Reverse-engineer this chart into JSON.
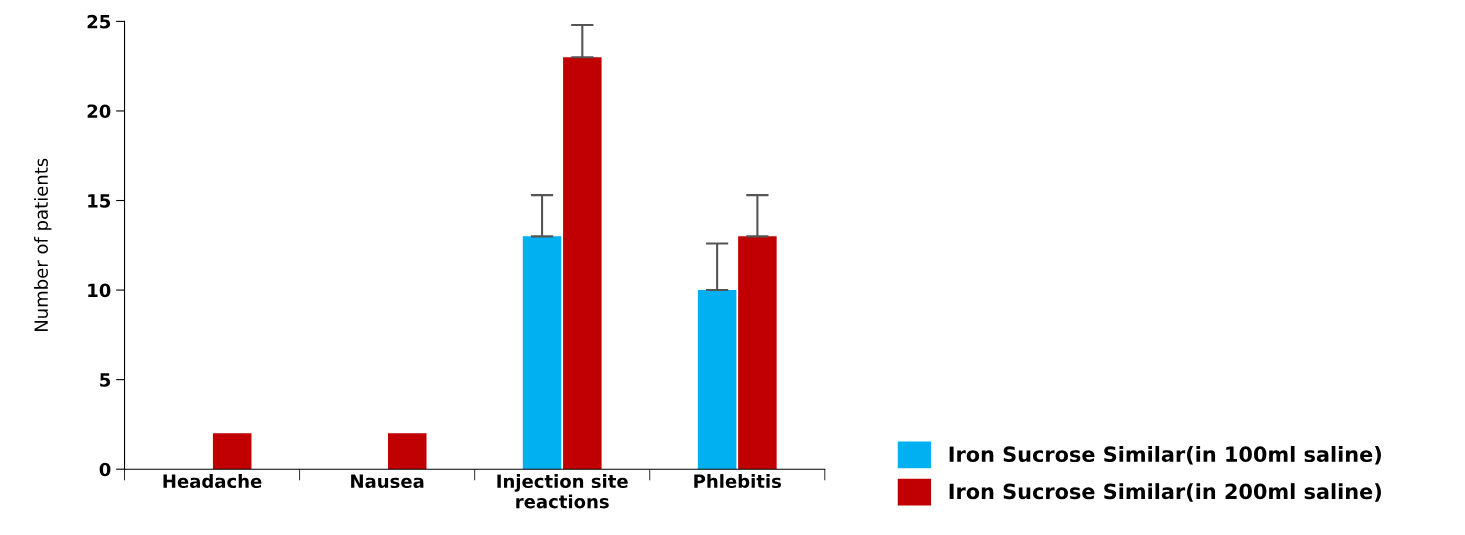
{
  "chart_data": {
    "type": "bar",
    "ylabel": "Number of patients",
    "categories": [
      "Headache",
      "Nausea",
      "Injection site\nreactions",
      "Phlebitis"
    ],
    "series": [
      {
        "name": "Iron Sucrose Similar(in 100ml saline)",
        "color": "#00b0f0",
        "values": [
          0,
          0,
          13,
          10
        ],
        "errors": [
          null,
          null,
          [
            13,
            15.3
          ],
          [
            10,
            12.6
          ]
        ]
      },
      {
        "name": "Iron Sucrose Similar(in 200ml saline)",
        "color": "#c00000",
        "values": [
          2,
          2,
          23,
          13
        ],
        "errors": [
          null,
          null,
          [
            23,
            24.8
          ],
          [
            13,
            15.3
          ]
        ]
      }
    ],
    "ylim": [
      0,
      25
    ],
    "yticks": [
      0,
      5,
      10,
      15,
      20,
      25
    ],
    "grid": false,
    "legend": "bottom right"
  }
}
